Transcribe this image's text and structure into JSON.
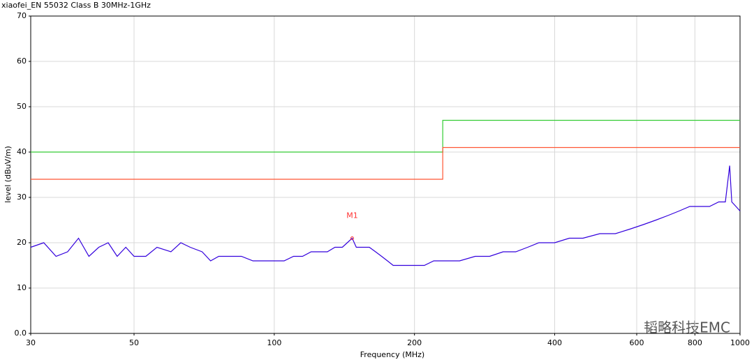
{
  "chart_data": {
    "type": "line",
    "title": "xiaofei_EN 55032 Class B 30MHz-1GHz",
    "x_label": "Frequency (MHz)",
    "y_label": "level (dBuV/m)",
    "x_scale": "log",
    "grid": true,
    "xlim": [
      30,
      1000
    ],
    "ylim": [
      0,
      70
    ],
    "xticks": [
      30,
      50,
      100,
      200,
      400,
      600,
      800,
      1000
    ],
    "yticks": [
      {
        "value": 0,
        "label": "0.0"
      },
      10,
      20,
      30,
      40,
      50,
      60,
      70
    ],
    "series": [
      {
        "color": "#3300dd",
        "x": [
          30,
          32,
          34,
          36,
          38,
          40,
          42,
          44,
          46,
          48,
          50,
          53,
          56,
          60,
          63,
          66,
          70,
          73,
          76,
          80,
          85,
          90,
          95,
          100,
          105,
          110,
          115,
          120,
          125,
          130,
          135,
          140,
          147,
          150,
          155,
          160,
          165,
          170,
          175,
          180,
          190,
          200,
          210,
          220,
          230,
          250,
          270,
          290,
          310,
          330,
          350,
          370,
          400,
          430,
          460,
          500,
          540,
          580,
          620,
          660,
          700,
          740,
          780,
          820,
          860,
          900,
          930,
          950,
          960,
          980,
          1000
        ],
        "values": [
          19,
          20,
          17,
          18,
          21,
          17,
          19,
          20,
          17,
          19,
          17,
          17,
          19,
          18,
          20,
          19,
          18,
          16,
          17,
          17,
          17,
          16,
          16,
          16,
          16,
          17,
          17,
          18,
          18,
          18,
          19,
          19,
          21,
          19,
          19,
          19,
          18,
          17,
          16,
          15,
          15,
          15,
          15,
          16,
          16,
          16,
          17,
          17,
          18,
          18,
          19,
          20,
          20,
          21,
          21,
          22,
          22,
          23,
          24,
          25,
          26,
          27,
          28,
          28,
          28,
          29,
          29,
          37,
          29,
          28,
          27
        ]
      },
      {
        "color": "#33cc33",
        "x": [
          30,
          230,
          230,
          1000
        ],
        "values": [
          40,
          40,
          47,
          47
        ]
      },
      {
        "color": "#ff5533",
        "x": [
          30,
          230,
          230,
          1000
        ],
        "values": [
          34,
          34,
          41,
          41
        ]
      }
    ],
    "markers": [
      {
        "label": "M1",
        "x": 147,
        "y": 21,
        "color": "#ff3333"
      }
    ],
    "watermark": "韬略科技EMC"
  }
}
